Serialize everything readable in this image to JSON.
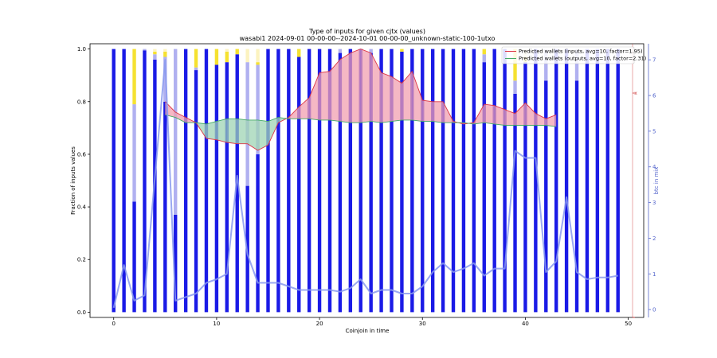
{
  "chart_data": {
    "type": "bar",
    "title": "Type of inputs for given cjtx (values)",
    "subtitle": "wasabi1 2024-09-01 00-00-00--2024-10-01 00-00-00_unknown-static-100-1utxo",
    "xlabel": "Coinjoin in time",
    "ylabel": "Fraction of inputs values",
    "y2label": "btc in mix",
    "y3label": "x",
    "xlim": [
      -2.3,
      51.5
    ],
    "ylim": [
      -0.02,
      1.02
    ],
    "y2lim": [
      -0.22,
      7.45
    ],
    "xticks": [
      0,
      10,
      20,
      30,
      40,
      50
    ],
    "yticks": [
      0.0,
      0.2,
      0.4,
      0.6,
      0.8,
      1.0
    ],
    "y2ticks": [
      0,
      1,
      2,
      3,
      4,
      5,
      6,
      7
    ],
    "colors": {
      "fresh": "#1a1ae6",
      "remix": "#b0b0f0",
      "friends": "#f5e130",
      "other": "#fcf3c0",
      "btc_line": "#8899ee",
      "pred_inputs": "#dd3344",
      "pred_inputs_fill": "#f2a0b0",
      "pred_outputs": "#44aa66",
      "pred_outputs_fill": "#9fd4b4",
      "overlap_fill": "#cc6666",
      "y3axis": "#cc3333",
      "y2axis": "#5566cc"
    },
    "stacks": [
      {
        "x": 0,
        "fresh": 1.0,
        "remix": 0.0,
        "friends": 0.0,
        "other": 0.0
      },
      {
        "x": 1,
        "fresh": 1.0,
        "remix": 0.0,
        "friends": 0.0,
        "other": 0.0
      },
      {
        "x": 2,
        "fresh": 0.42,
        "remix": 0.37,
        "friends": 0.21,
        "other": 0.0
      },
      {
        "x": 3,
        "fresh": 0.995,
        "remix": 0.005,
        "friends": 0.0,
        "other": 0.0
      },
      {
        "x": 4,
        "fresh": 0.96,
        "remix": 0.02,
        "friends": 0.01,
        "other": 0.01
      },
      {
        "x": 5,
        "fresh": 0.8,
        "remix": 0.17,
        "friends": 0.02,
        "other": 0.01
      },
      {
        "x": 6,
        "fresh": 0.37,
        "remix": 0.63,
        "friends": 0.0,
        "other": 0.0
      },
      {
        "x": 7,
        "fresh": 1.0,
        "remix": 0.0,
        "friends": 0.0,
        "other": 0.0
      },
      {
        "x": 8,
        "fresh": 0.92,
        "remix": 0.01,
        "friends": 0.07,
        "other": 0.0
      },
      {
        "x": 9,
        "fresh": 1.0,
        "remix": 0.0,
        "friends": 0.0,
        "other": 0.0
      },
      {
        "x": 10,
        "fresh": 0.94,
        "remix": 0.0,
        "friends": 0.06,
        "other": 0.0
      },
      {
        "x": 11,
        "fresh": 0.95,
        "remix": 0.0,
        "friends": 0.04,
        "other": 0.01
      },
      {
        "x": 12,
        "fresh": 0.98,
        "remix": 0.0,
        "friends": 0.02,
        "other": 0.0
      },
      {
        "x": 13,
        "fresh": 0.48,
        "remix": 0.47,
        "friends": 0.0,
        "other": 0.05
      },
      {
        "x": 14,
        "fresh": 0.6,
        "remix": 0.34,
        "friends": 0.01,
        "other": 0.05
      },
      {
        "x": 15,
        "fresh": 1.0,
        "remix": 0.0,
        "friends": 0.0,
        "other": 0.0
      },
      {
        "x": 16,
        "fresh": 1.0,
        "remix": 0.0,
        "friends": 0.0,
        "other": 0.0
      },
      {
        "x": 17,
        "fresh": 1.0,
        "remix": 0.0,
        "friends": 0.0,
        "other": 0.0
      },
      {
        "x": 18,
        "fresh": 0.97,
        "remix": 0.0,
        "friends": 0.03,
        "other": 0.0
      },
      {
        "x": 19,
        "fresh": 1.0,
        "remix": 0.0,
        "friends": 0.0,
        "other": 0.0
      },
      {
        "x": 20,
        "fresh": 1.0,
        "remix": 0.0,
        "friends": 0.0,
        "other": 0.0
      },
      {
        "x": 21,
        "fresh": 1.0,
        "remix": 0.0,
        "friends": 0.0,
        "other": 0.0
      },
      {
        "x": 22,
        "fresh": 0.985,
        "remix": 0.015,
        "friends": 0.0,
        "other": 0.0
      },
      {
        "x": 23,
        "fresh": 1.0,
        "remix": 0.0,
        "friends": 0.0,
        "other": 0.0
      },
      {
        "x": 24,
        "fresh": 1.0,
        "remix": 0.0,
        "friends": 0.0,
        "other": 0.0
      },
      {
        "x": 25,
        "fresh": 0.985,
        "remix": 0.015,
        "friends": 0.0,
        "other": 0.0
      },
      {
        "x": 26,
        "fresh": 1.0,
        "remix": 0.0,
        "friends": 0.0,
        "other": 0.0
      },
      {
        "x": 27,
        "fresh": 1.0,
        "remix": 0.0,
        "friends": 0.0,
        "other": 0.0
      },
      {
        "x": 28,
        "fresh": 0.99,
        "remix": 0.0,
        "friends": 0.01,
        "other": 0.0
      },
      {
        "x": 29,
        "fresh": 1.0,
        "remix": 0.0,
        "friends": 0.0,
        "other": 0.0
      },
      {
        "x": 30,
        "fresh": 1.0,
        "remix": 0.0,
        "friends": 0.0,
        "other": 0.0
      },
      {
        "x": 31,
        "fresh": 1.0,
        "remix": 0.0,
        "friends": 0.0,
        "other": 0.0
      },
      {
        "x": 32,
        "fresh": 1.0,
        "remix": 0.0,
        "friends": 0.0,
        "other": 0.0
      },
      {
        "x": 33,
        "fresh": 1.0,
        "remix": 0.0,
        "friends": 0.0,
        "other": 0.0
      },
      {
        "x": 34,
        "fresh": 1.0,
        "remix": 0.0,
        "friends": 0.0,
        "other": 0.0
      },
      {
        "x": 35,
        "fresh": 1.0,
        "remix": 0.0,
        "friends": 0.0,
        "other": 0.0
      },
      {
        "x": 36,
        "fresh": 0.95,
        "remix": 0.03,
        "friends": 0.02,
        "other": 0.0
      },
      {
        "x": 37,
        "fresh": 1.0,
        "remix": 0.0,
        "friends": 0.0,
        "other": 0.0
      },
      {
        "x": 38,
        "fresh": 1.0,
        "remix": 0.0,
        "friends": 0.0,
        "other": 0.0
      },
      {
        "x": 39,
        "fresh": 0.83,
        "remix": 0.05,
        "friends": 0.12,
        "other": 0.0
      },
      {
        "x": 40,
        "fresh": 0.95,
        "remix": 0.0,
        "friends": 0.02,
        "other": 0.03
      },
      {
        "x": 41,
        "fresh": 1.0,
        "remix": 0.0,
        "friends": 0.0,
        "other": 0.0
      },
      {
        "x": 42,
        "fresh": 0.88,
        "remix": 0.12,
        "friends": 0.0,
        "other": 0.0
      },
      {
        "x": 43,
        "fresh": 1.0,
        "remix": 0.0,
        "friends": 0.0,
        "other": 0.0
      },
      {
        "x": 44,
        "fresh": 1.0,
        "remix": 0.0,
        "friends": 0.0,
        "other": 0.0
      },
      {
        "x": 45,
        "fresh": 0.88,
        "remix": 0.12,
        "friends": 0.0,
        "other": 0.0
      },
      {
        "x": 46,
        "fresh": 1.0,
        "remix": 0.0,
        "friends": 0.0,
        "other": 0.0
      },
      {
        "x": 47,
        "fresh": 1.0,
        "remix": 0.0,
        "friends": 0.0,
        "other": 0.0
      },
      {
        "x": 48,
        "fresh": 1.0,
        "remix": 0.0,
        "friends": 0.0,
        "other": 0.0
      },
      {
        "x": 49,
        "fresh": 1.0,
        "remix": 0.0,
        "friends": 0.0,
        "other": 0.0
      }
    ],
    "btc_in_mix": {
      "x": [
        0,
        1,
        2,
        3,
        4,
        5,
        6,
        7,
        8,
        9,
        10,
        11,
        12,
        13,
        14,
        15,
        16,
        17,
        18,
        19,
        20,
        21,
        22,
        23,
        24,
        25,
        26,
        27,
        28,
        29,
        30,
        31,
        32,
        33,
        34,
        35,
        36,
        37,
        38,
        39,
        40,
        41,
        42,
        43,
        44,
        45,
        46,
        47,
        48,
        49
      ],
      "values": [
        0.05,
        1.25,
        0.25,
        0.4,
        3.7,
        7.0,
        0.25,
        0.35,
        0.45,
        0.75,
        0.85,
        1.0,
        3.75,
        1.55,
        0.75,
        0.75,
        0.75,
        0.65,
        0.55,
        0.55,
        0.55,
        0.55,
        0.5,
        0.6,
        0.85,
        0.45,
        0.55,
        0.55,
        0.45,
        0.45,
        0.65,
        1.05,
        1.3,
        1.05,
        1.15,
        1.3,
        0.95,
        1.15,
        1.15,
        4.45,
        4.25,
        4.25,
        1.05,
        1.35,
        3.15,
        1.05,
        0.85,
        0.9,
        0.9,
        0.95
      ]
    },
    "series": [
      {
        "name": "Predicted wallets (inputs, avg=10, factor=1.95)",
        "x": [
          5,
          6,
          7,
          8,
          9,
          10,
          11,
          12,
          13,
          14,
          15,
          16,
          17,
          18,
          19,
          20,
          21,
          22,
          23,
          24,
          25,
          26,
          27,
          28,
          29,
          30,
          31,
          32,
          33,
          34,
          35,
          36,
          37,
          38,
          39,
          40,
          41,
          42,
          43
        ],
        "values": [
          0.8,
          0.76,
          0.74,
          0.72,
          0.66,
          0.655,
          0.645,
          0.64,
          0.64,
          0.615,
          0.635,
          0.72,
          0.74,
          0.78,
          0.815,
          0.91,
          0.915,
          0.96,
          0.985,
          1.0,
          0.985,
          0.91,
          0.895,
          0.87,
          0.915,
          0.805,
          0.8,
          0.8,
          0.725,
          0.715,
          0.72,
          0.79,
          0.785,
          0.77,
          0.755,
          0.795,
          0.755,
          0.735,
          0.75
        ]
      },
      {
        "name": "Predicted wallets (outputs, avg=10, factor=2.31)",
        "x": [
          5,
          6,
          7,
          8,
          9,
          10,
          11,
          12,
          13,
          14,
          15,
          16,
          17,
          18,
          19,
          20,
          21,
          22,
          23,
          24,
          25,
          26,
          27,
          28,
          29,
          30,
          31,
          32,
          33,
          34,
          35,
          36,
          37,
          38,
          39,
          40,
          41,
          42,
          43
        ],
        "values": [
          0.75,
          0.74,
          0.72,
          0.72,
          0.715,
          0.725,
          0.735,
          0.735,
          0.73,
          0.73,
          0.725,
          0.74,
          0.735,
          0.735,
          0.735,
          0.73,
          0.73,
          0.725,
          0.72,
          0.72,
          0.725,
          0.72,
          0.725,
          0.73,
          0.73,
          0.725,
          0.725,
          0.72,
          0.72,
          0.72,
          0.715,
          0.72,
          0.715,
          0.71,
          0.71,
          0.71,
          0.71,
          0.71,
          0.705
        ]
      }
    ],
    "legend_position": "top-right",
    "grid": false
  }
}
